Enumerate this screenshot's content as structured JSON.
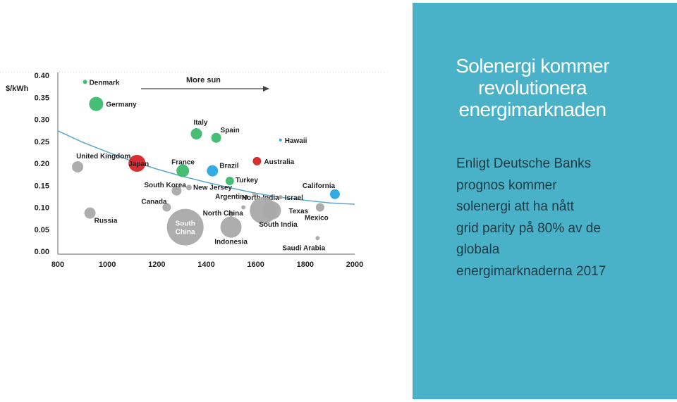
{
  "slide": {
    "title_lines": [
      "Solenergi kommer",
      "revolutionera",
      "energimarknaden"
    ],
    "body_lines": [
      "Enligt Deutsche Banks",
      "prognos kommer",
      "solenergi att ha nått",
      "grid parity på 80% av de",
      "globala",
      "energimarknaderna 2017"
    ]
  },
  "colors": {
    "panel": "#4ab2c8",
    "green": "#3dbb6e",
    "red": "#d42528",
    "blue": "#29a6e2",
    "gray": "#a9a9a9",
    "trend": "#5aa6cc"
  },
  "chart_data": {
    "type": "scatter",
    "ylabel": "$/kWh",
    "annotation": "More sun",
    "xlim": [
      800,
      2000
    ],
    "ylim": [
      0.0,
      0.4
    ],
    "x_ticks": [
      "800",
      "1000",
      "1200",
      "1400",
      "1600",
      "1800",
      "2000"
    ],
    "y_ticks": [
      "0.00",
      "0.05",
      "0.10",
      "0.15",
      "0.20",
      "0.25",
      "0.30",
      "0.35",
      "0.40"
    ],
    "points": [
      {
        "label": "Denmark",
        "x": 910,
        "y": 0.385,
        "size": 3,
        "color": "green"
      },
      {
        "label": "Germany",
        "x": 955,
        "y": 0.335,
        "size": 10,
        "color": "green"
      },
      {
        "label": "United Kingdom",
        "x": 880,
        "y": 0.192,
        "size": 8,
        "color": "gray"
      },
      {
        "label": "Japan",
        "x": 1120,
        "y": 0.2,
        "size": 12,
        "color": "red"
      },
      {
        "label": "France",
        "x": 1305,
        "y": 0.183,
        "size": 9,
        "color": "green"
      },
      {
        "label": "Italy",
        "x": 1360,
        "y": 0.267,
        "size": 8,
        "color": "green"
      },
      {
        "label": "Spain",
        "x": 1440,
        "y": 0.258,
        "size": 7,
        "color": "green"
      },
      {
        "label": "Brazil",
        "x": 1425,
        "y": 0.183,
        "size": 8,
        "color": "blue"
      },
      {
        "label": "Australia",
        "x": 1605,
        "y": 0.205,
        "size": 6,
        "color": "red"
      },
      {
        "label": "Hawaii",
        "x": 1700,
        "y": 0.253,
        "size": 2,
        "color": "blue"
      },
      {
        "label": "Turkey",
        "x": 1495,
        "y": 0.16,
        "size": 6,
        "color": "green"
      },
      {
        "label": "South Korea",
        "x": 1280,
        "y": 0.138,
        "size": 7,
        "color": "gray"
      },
      {
        "label": "New Jersey",
        "x": 1330,
        "y": 0.145,
        "size": 4,
        "color": "gray"
      },
      {
        "label": "North India",
        "x": 1595,
        "y": 0.13,
        "size": 3,
        "color": "gray"
      },
      {
        "label": "Israel",
        "x": 1700,
        "y": 0.123,
        "size": 3,
        "color": "gray"
      },
      {
        "label": "California",
        "x": 1920,
        "y": 0.13,
        "size": 7,
        "color": "blue"
      },
      {
        "label": "Canada",
        "x": 1240,
        "y": 0.1,
        "size": 6,
        "color": "gray"
      },
      {
        "label": "Russia",
        "x": 930,
        "y": 0.087,
        "size": 8,
        "color": "gray"
      },
      {
        "label": "Argentina",
        "x": 1550,
        "y": 0.1,
        "size": 3,
        "color": "gray"
      },
      {
        "label": "North China",
        "x": 1500,
        "y": 0.085,
        "size": 4,
        "color": "gray"
      },
      {
        "label": "Texas",
        "x": 1665,
        "y": 0.093,
        "size": 13,
        "color": "gray"
      },
      {
        "label": "Mexico",
        "x": 1860,
        "y": 0.1,
        "size": 6,
        "color": "gray"
      },
      {
        "label": "South China",
        "x": 1315,
        "y": 0.055,
        "size": 26,
        "color": "gray"
      },
      {
        "label": "Indonesia",
        "x": 1500,
        "y": 0.055,
        "size": 15,
        "color": "gray"
      },
      {
        "label": "South India",
        "x": 1630,
        "y": 0.093,
        "size": 19,
        "color": "gray"
      },
      {
        "label": "Saudi Arabia",
        "x": 1850,
        "y": 0.03,
        "size": 3,
        "color": "gray"
      }
    ],
    "trend": {
      "x": [
        800,
        900,
        1000,
        1100,
        1200,
        1300,
        1400,
        1500,
        1600,
        1700,
        1800,
        1900,
        2000
      ],
      "y": [
        0.274,
        0.248,
        0.226,
        0.205,
        0.187,
        0.171,
        0.157,
        0.144,
        0.132,
        0.123,
        0.116,
        0.11,
        0.107
      ]
    }
  }
}
